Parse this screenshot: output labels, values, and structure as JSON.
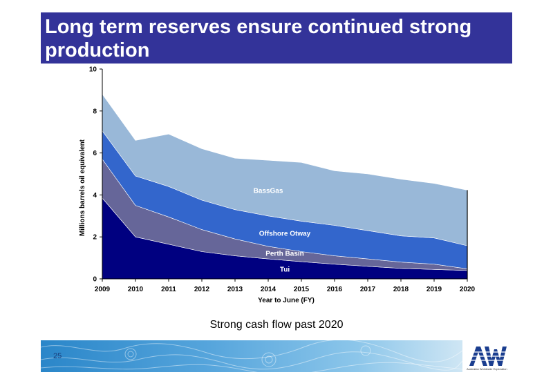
{
  "slide": {
    "title": "Long term reserves ensure continued strong production",
    "footer_text": "Strong cash flow past 2020",
    "page_number": "25",
    "logo_text": "AWE",
    "logo_caption": "Australian Worldwide Exploration"
  },
  "chart_data": {
    "type": "area",
    "stacked": true,
    "title": "",
    "xlabel": "Year to June (FY)",
    "ylabel": "Millions barrels oil equivalent",
    "ylim": [
      0,
      10
    ],
    "yticks": [
      "0",
      "2",
      "4",
      "6",
      "8",
      "10"
    ],
    "x": [
      "2009",
      "2010",
      "2011",
      "2012",
      "2013",
      "2014",
      "2015",
      "2016",
      "2017",
      "2018",
      "2019",
      "2020"
    ],
    "grid": false,
    "legend": "none",
    "series": [
      {
        "name": "Tui",
        "color": "#000080",
        "values": [
          3.85,
          2.0,
          1.65,
          1.3,
          1.1,
          0.95,
          0.82,
          0.7,
          0.6,
          0.5,
          0.45,
          0.4
        ]
      },
      {
        "name": "Perth Basin",
        "color": "#666699",
        "values": [
          1.85,
          1.5,
          1.3,
          1.05,
          0.8,
          0.6,
          0.48,
          0.4,
          0.35,
          0.3,
          0.25,
          0.08
        ]
      },
      {
        "name": "Offshore Otway",
        "color": "#3366cc",
        "values": [
          1.35,
          1.4,
          1.45,
          1.4,
          1.4,
          1.45,
          1.45,
          1.45,
          1.35,
          1.25,
          1.25,
          1.1
        ]
      },
      {
        "name": "BassGas",
        "color": "#99b8d8",
        "values": [
          1.75,
          1.7,
          2.5,
          2.45,
          2.45,
          2.65,
          2.8,
          2.6,
          2.7,
          2.7,
          2.6,
          2.65
        ]
      }
    ],
    "label_positions": {
      "BassGas": {
        "x": "2014",
        "y": 4.1
      },
      "Offshore Otway": {
        "x": "2014.5",
        "y": 2.05
      },
      "Perth Basin": {
        "x": "2014.5",
        "y": 1.1
      },
      "Tui": {
        "x": "2014.5",
        "y": 0.35
      }
    }
  }
}
